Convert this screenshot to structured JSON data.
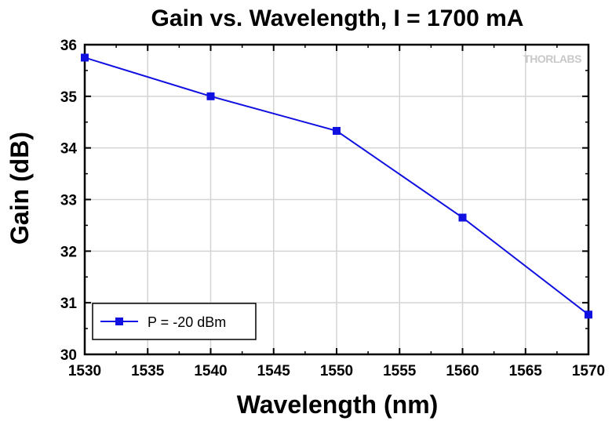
{
  "watermark": "THORLABS",
  "chart_data": {
    "type": "line",
    "title": "Gain vs. Wavelength, I = 1700 mA",
    "xlabel": "Wavelength (nm)",
    "ylabel": "Gain (dB)",
    "xlim": [
      1530,
      1570
    ],
    "ylim": [
      30,
      36
    ],
    "xticks": [
      "1530",
      "1535",
      "1540",
      "1545",
      "1550",
      "1555",
      "1560",
      "1565",
      "1570"
    ],
    "yticks": [
      "30",
      "31",
      "32",
      "33",
      "34",
      "35",
      "36"
    ],
    "grid": true,
    "legend_position": "bottom-left",
    "series": [
      {
        "name": "P = -20 dBm",
        "color": "#1010e0",
        "marker": "square",
        "x": [
          1530,
          1540,
          1550,
          1560,
          1570
        ],
        "y": [
          35.75,
          35.0,
          34.33,
          32.65,
          30.77
        ]
      }
    ]
  }
}
